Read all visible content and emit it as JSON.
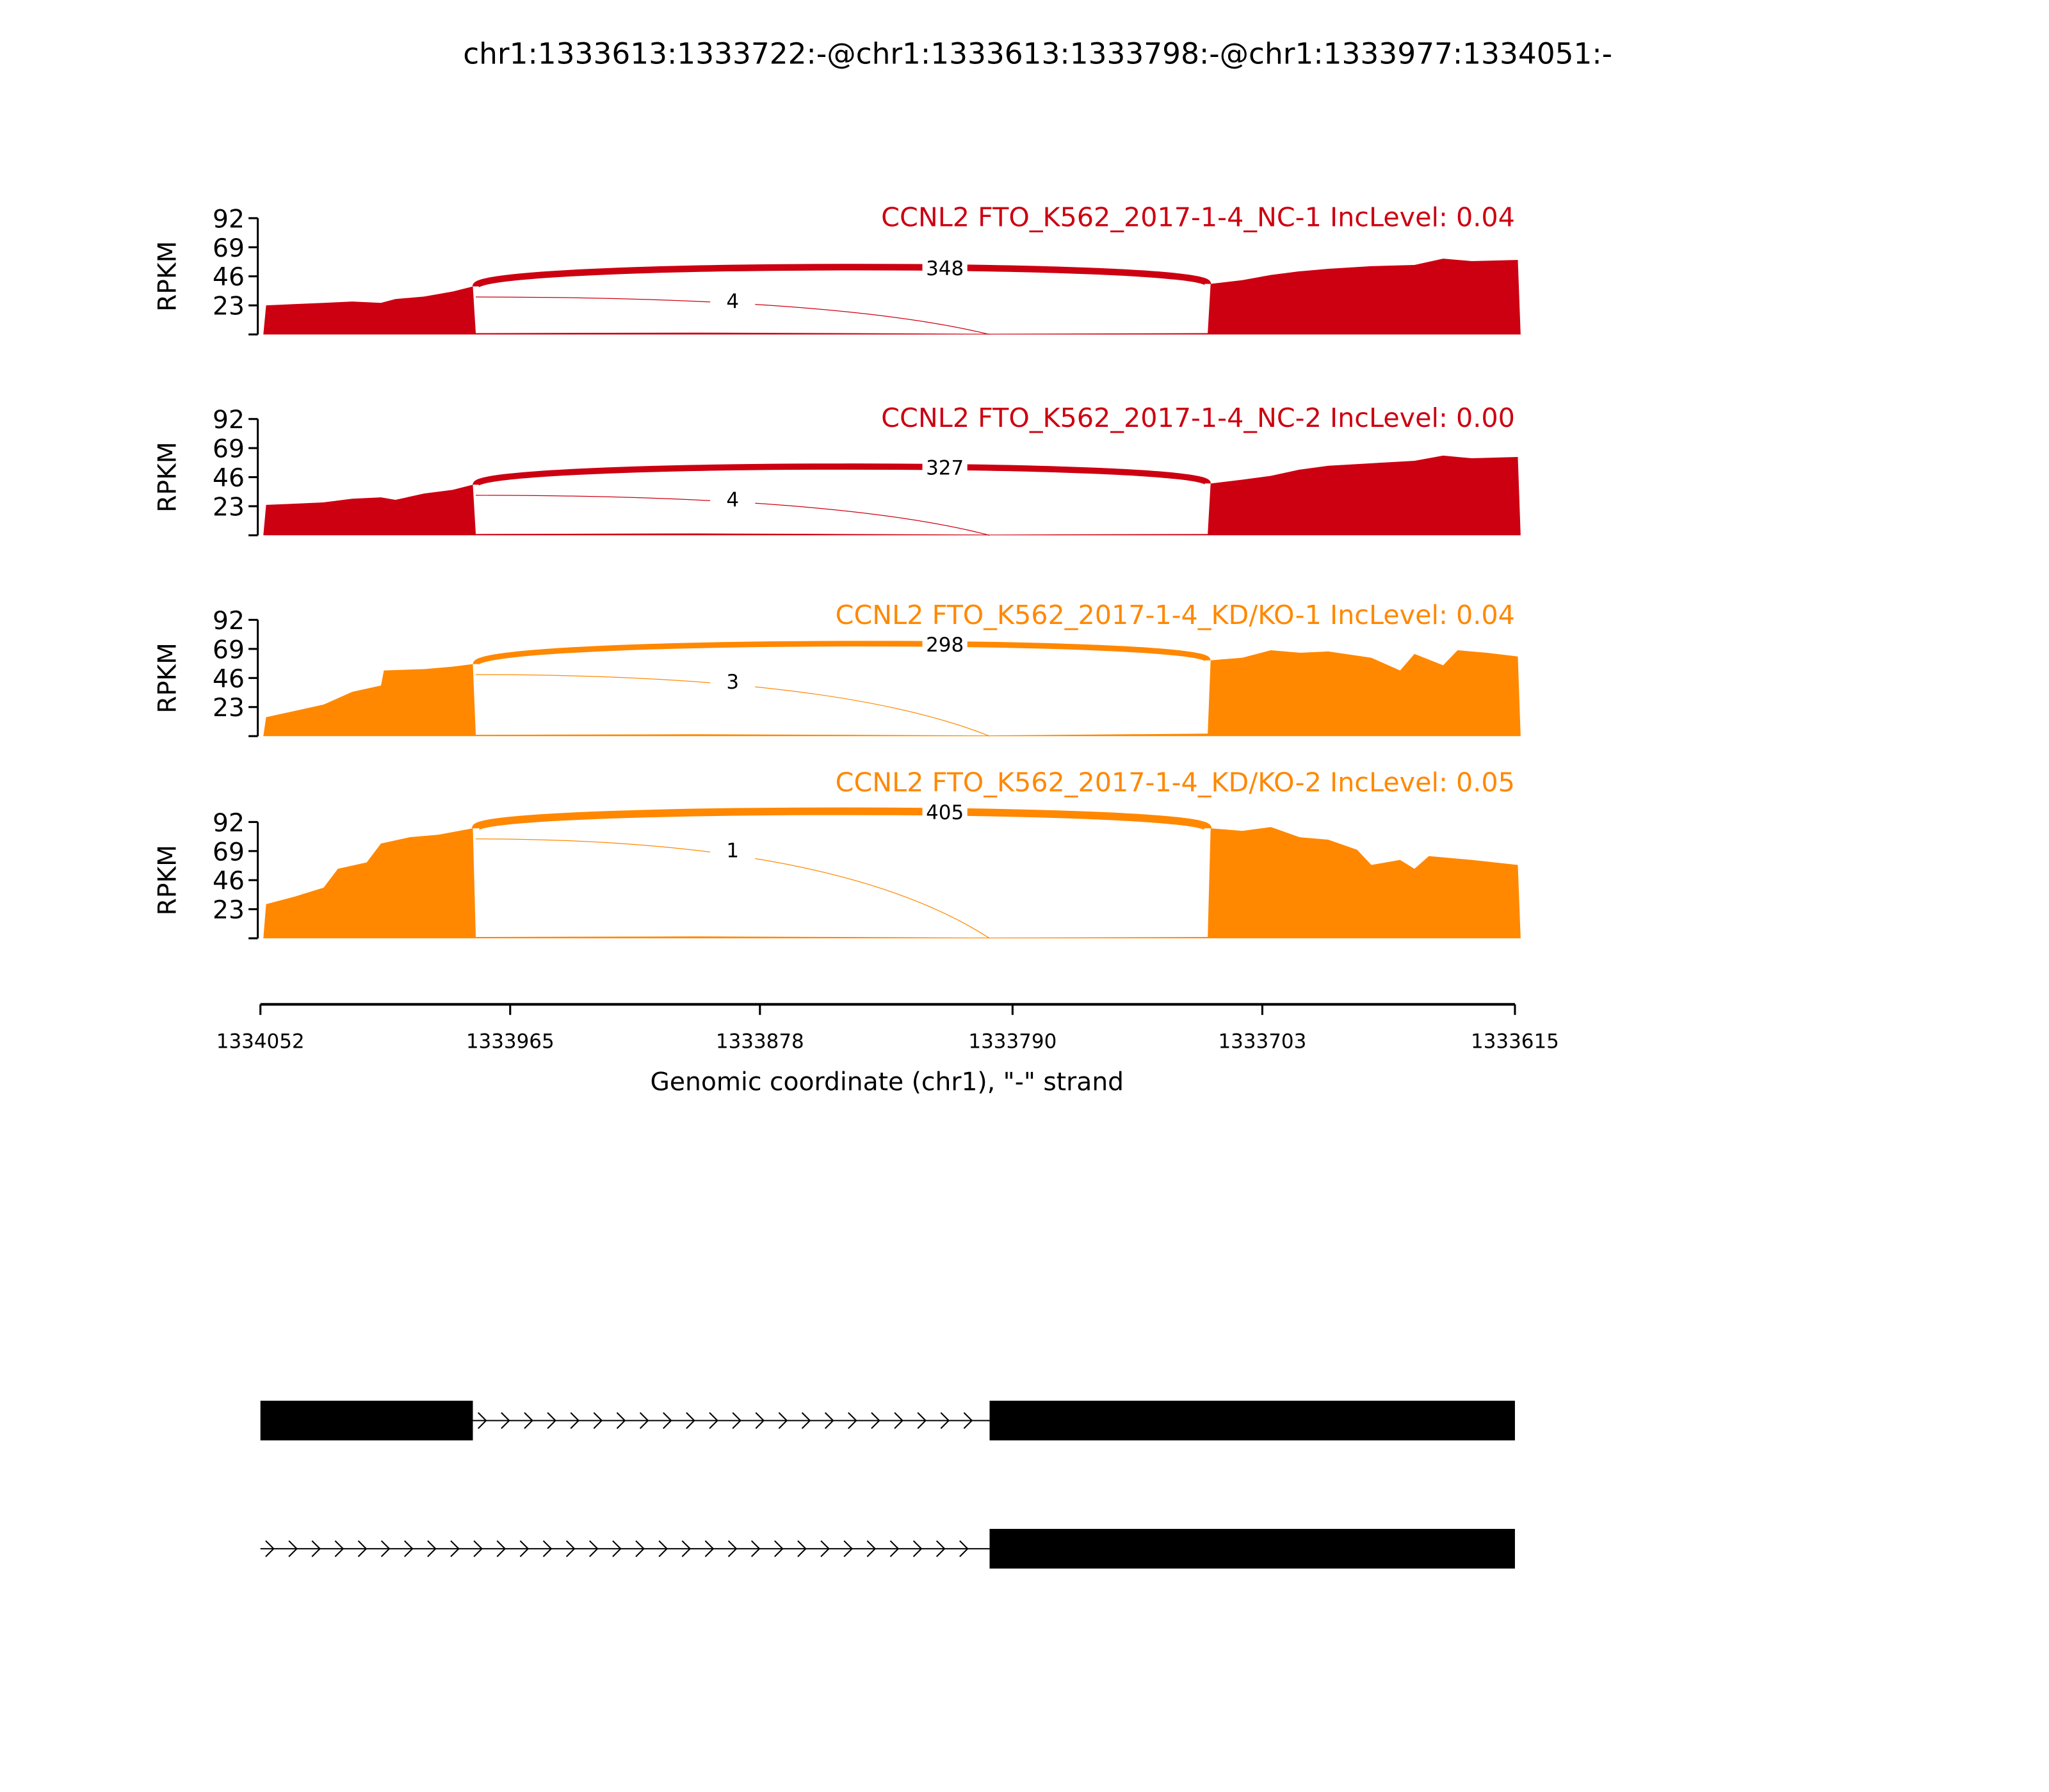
{
  "chart_data": {
    "type": "area",
    "title": "chr1:1333613:1333722:-@chr1:1333613:1333798:-@chr1:1333977:1334051:-",
    "xlabel": "Genomic coordinate (chr1), \"-\" strand",
    "ylabel": "RPKM",
    "xlim": [
      1334052,
      1333615
    ],
    "ylim": [
      0,
      92
    ],
    "xticks": [
      "1334052",
      "1333965",
      "1333878",
      "1333790",
      "1333703",
      "1333615"
    ],
    "yticks": [
      "23",
      "46",
      "69",
      "92"
    ],
    "panels": [
      {
        "name": "CCNL2 FTO_K562_2017-1-4_NC-1 IncLevel: 0.04",
        "color": "#cc0011",
        "coverage": [
          [
            1334051,
            0
          ],
          [
            1334050,
            23
          ],
          [
            1334040,
            24
          ],
          [
            1334030,
            25
          ],
          [
            1334020,
            26
          ],
          [
            1334010,
            25
          ],
          [
            1334005,
            28
          ],
          [
            1333995,
            30
          ],
          [
            1333985,
            34
          ],
          [
            1333978,
            38
          ],
          [
            1333977,
            1
          ],
          [
            1333900,
            1.5
          ],
          [
            1333850,
            1
          ],
          [
            1333798,
            0.5
          ],
          [
            1333722,
            1
          ],
          [
            1333721,
            40
          ],
          [
            1333710,
            43
          ],
          [
            1333700,
            47
          ],
          [
            1333690,
            50
          ],
          [
            1333680,
            52
          ],
          [
            1333665,
            54
          ],
          [
            1333650,
            55
          ],
          [
            1333640,
            60
          ],
          [
            1333630,
            58
          ],
          [
            1333614,
            59
          ],
          [
            1333613,
            0
          ]
        ],
        "junctions": [
          {
            "from": 1333977,
            "to": 1333722,
            "count": "348"
          },
          {
            "from": 1333977,
            "to": 1333798,
            "count": "4"
          }
        ]
      },
      {
        "name": "CCNL2 FTO_K562_2017-1-4_NC-2 IncLevel: 0.00",
        "color": "#cc0011",
        "coverage": [
          [
            1334051,
            0
          ],
          [
            1334050,
            24
          ],
          [
            1334040,
            25
          ],
          [
            1334030,
            26
          ],
          [
            1334020,
            29
          ],
          [
            1334010,
            30
          ],
          [
            1334005,
            28
          ],
          [
            1333995,
            33
          ],
          [
            1333985,
            36
          ],
          [
            1333978,
            40
          ],
          [
            1333977,
            1
          ],
          [
            1333900,
            1.5
          ],
          [
            1333850,
            1
          ],
          [
            1333798,
            0.5
          ],
          [
            1333722,
            1
          ],
          [
            1333721,
            41
          ],
          [
            1333710,
            44
          ],
          [
            1333700,
            47
          ],
          [
            1333690,
            52
          ],
          [
            1333680,
            55
          ],
          [
            1333665,
            57
          ],
          [
            1333650,
            59
          ],
          [
            1333640,
            63
          ],
          [
            1333630,
            61
          ],
          [
            1333614,
            62
          ],
          [
            1333613,
            0
          ]
        ],
        "junctions": [
          {
            "from": 1333977,
            "to": 1333722,
            "count": "327"
          },
          {
            "from": 1333977,
            "to": 1333798,
            "count": "4"
          }
        ]
      },
      {
        "name": "CCNL2 FTO_K562_2017-1-4_KD/KO-1 IncLevel: 0.04",
        "color": "#ff8800",
        "coverage": [
          [
            1334051,
            0
          ],
          [
            1334050,
            15
          ],
          [
            1334040,
            20
          ],
          [
            1334030,
            25
          ],
          [
            1334020,
            35
          ],
          [
            1334010,
            40
          ],
          [
            1334009,
            52
          ],
          [
            1333995,
            53
          ],
          [
            1333985,
            55
          ],
          [
            1333978,
            57
          ],
          [
            1333977,
            1
          ],
          [
            1333900,
            1.5
          ],
          [
            1333850,
            1
          ],
          [
            1333798,
            0.5
          ],
          [
            1333722,
            2
          ],
          [
            1333721,
            60
          ],
          [
            1333710,
            62
          ],
          [
            1333700,
            68
          ],
          [
            1333690,
            66
          ],
          [
            1333680,
            67
          ],
          [
            1333665,
            62
          ],
          [
            1333655,
            52
          ],
          [
            1333650,
            65
          ],
          [
            1333640,
            56
          ],
          [
            1333635,
            68
          ],
          [
            1333625,
            66
          ],
          [
            1333614,
            63
          ],
          [
            1333613,
            0
          ]
        ],
        "junctions": [
          {
            "from": 1333977,
            "to": 1333722,
            "count": "298"
          },
          {
            "from": 1333977,
            "to": 1333798,
            "count": "3"
          }
        ]
      },
      {
        "name": "CCNL2 FTO_K562_2017-1-4_KD/KO-2 IncLevel: 0.05",
        "color": "#ff8800",
        "coverage": [
          [
            1334051,
            0
          ],
          [
            1334050,
            27
          ],
          [
            1334040,
            33
          ],
          [
            1334030,
            40
          ],
          [
            1334025,
            55
          ],
          [
            1334015,
            60
          ],
          [
            1334010,
            75
          ],
          [
            1334000,
            80
          ],
          [
            1333990,
            82
          ],
          [
            1333978,
            87
          ],
          [
            1333977,
            1
          ],
          [
            1333900,
            1.5
          ],
          [
            1333850,
            1
          ],
          [
            1333798,
            0.5
          ],
          [
            1333722,
            1
          ],
          [
            1333721,
            87
          ],
          [
            1333710,
            85
          ],
          [
            1333700,
            88
          ],
          [
            1333690,
            80
          ],
          [
            1333680,
            78
          ],
          [
            1333670,
            70
          ],
          [
            1333665,
            58
          ],
          [
            1333655,
            62
          ],
          [
            1333650,
            55
          ],
          [
            1333645,
            65
          ],
          [
            1333630,
            62
          ],
          [
            1333614,
            58
          ],
          [
            1333613,
            0
          ]
        ],
        "junctions": [
          {
            "from": 1333977,
            "to": 1333722,
            "count": "405"
          },
          {
            "from": 1333977,
            "to": 1333798,
            "count": "1"
          }
        ]
      }
    ],
    "transcripts": [
      {
        "exons": [
          [
            1334052,
            1333978
          ],
          [
            1333798,
            1333615
          ]
        ],
        "intron": [
          1333978,
          1333798
        ]
      },
      {
        "exons": [
          [
            1333798,
            1333615
          ]
        ],
        "intron": [
          1334052,
          1333798
        ]
      }
    ]
  }
}
